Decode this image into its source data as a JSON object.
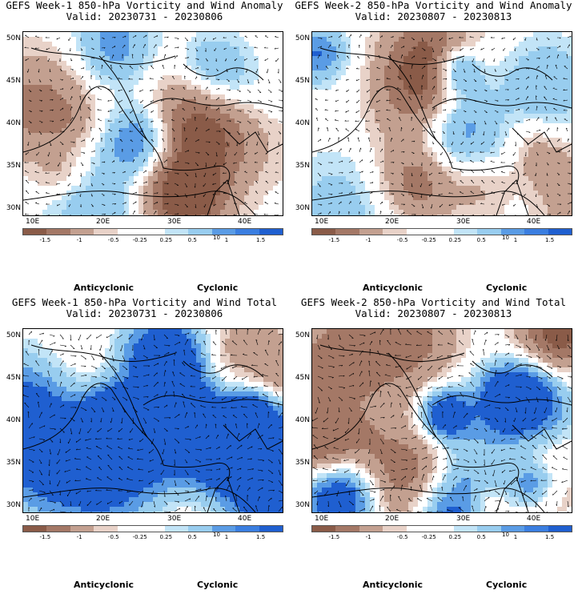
{
  "colors": {
    "anticyclonic": "#7a4a36",
    "cyclonic": "#1f5fd0",
    "scale": [
      "#8a5b48",
      "#a47866",
      "#c3a090",
      "#e8d2c8",
      "#ffffff",
      "#ffffff",
      "#c2e4f7",
      "#98cdef",
      "#5a9ce5",
      "#3a7ee0",
      "#1f5fd0"
    ]
  },
  "colorbar": {
    "ticks": [
      "-1.5",
      "-1",
      "-0.5",
      "-0.25",
      "0.25",
      "0.5",
      "1",
      "1.5"
    ],
    "unit": "10"
  },
  "axes": {
    "lat_labels": [
      "50N",
      "45N",
      "40N",
      "35N",
      "30N"
    ],
    "lon_labels": [
      "10E",
      "20E",
      "30E",
      "40E"
    ]
  },
  "legend": {
    "anticyclonic": "Anticyclonic",
    "cyclonic": "Cyclonic"
  },
  "panels": [
    {
      "title": "GEFS Week-1 850-hPa Vorticity and Wind Anomaly",
      "valid": "Valid: 20230731 - 20230806",
      "kind": "anomaly",
      "seed": 11
    },
    {
      "title": "GEFS Week-2 850-hPa Vorticity and Wind Anomaly",
      "valid": "Valid: 20230807 - 20230813",
      "kind": "anomaly2",
      "seed": 23
    },
    {
      "title": "GEFS Week-1 850-hPa Vorticity and Wind Total",
      "valid": "Valid: 20230731 - 20230806",
      "kind": "total",
      "seed": 37
    },
    {
      "title": "GEFS Week-2 850-hPa Vorticity and Wind Total",
      "valid": "Valid: 20230807 - 20230813",
      "kind": "total2",
      "seed": 53
    }
  ]
}
